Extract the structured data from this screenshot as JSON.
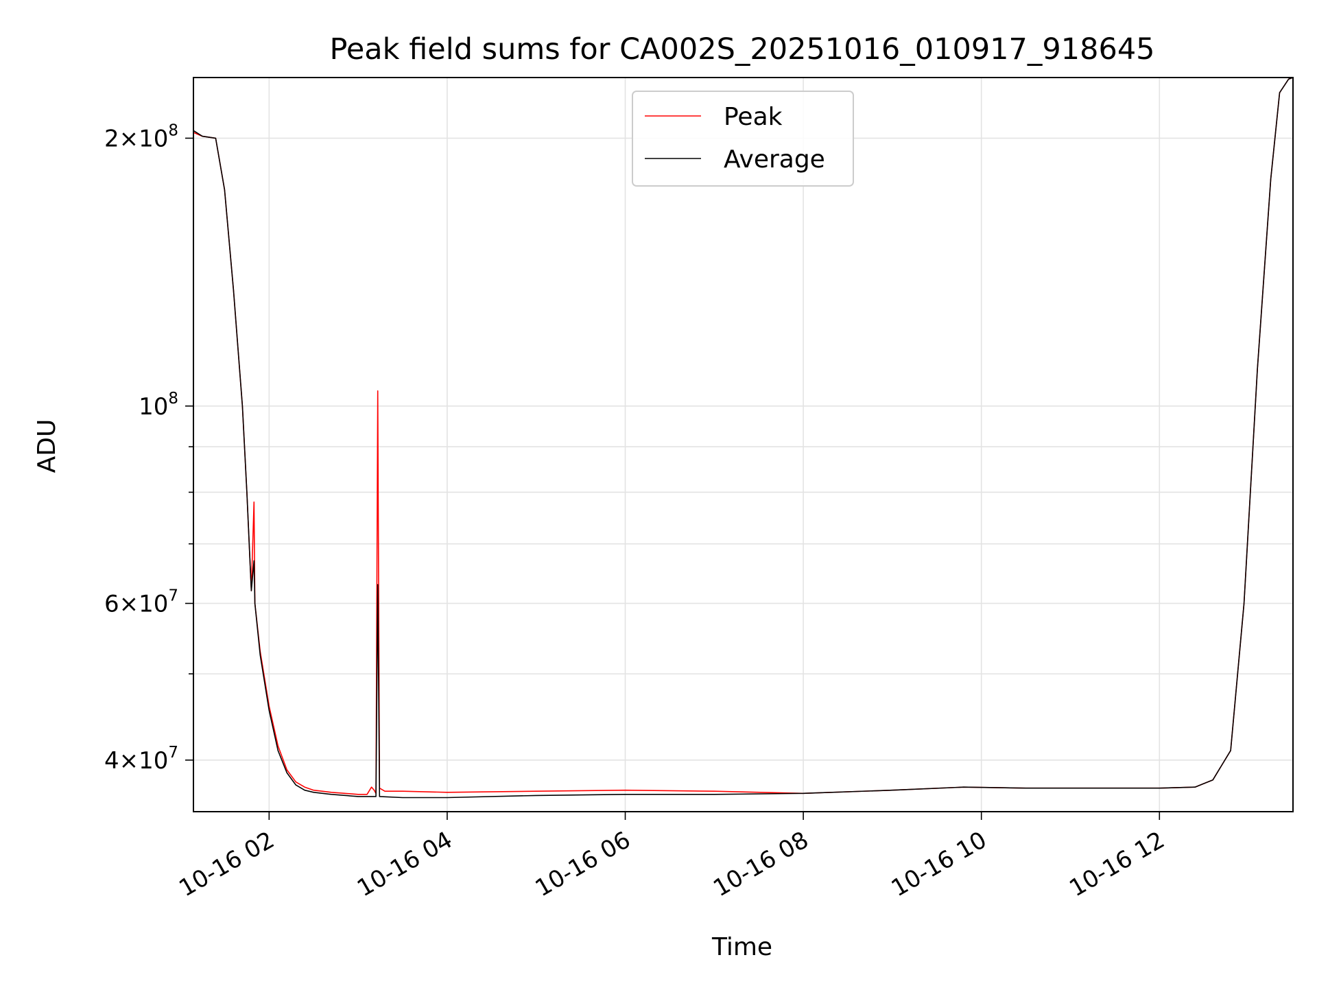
{
  "chart_data": {
    "type": "line",
    "title": "Peak field sums for CA002S_20251016_010917_918645",
    "xlabel": "Time",
    "ylabel": "ADU",
    "yscale": "log",
    "ylim": [
      35000000,
      234000000
    ],
    "xlim_hours": [
      1.15,
      13.5
    ],
    "grid": true,
    "legend_position": "upper center",
    "x_ticks": [
      {
        "hour": 2,
        "label": "10-16 02"
      },
      {
        "hour": 4,
        "label": "10-16 04"
      },
      {
        "hour": 6,
        "label": "10-16 06"
      },
      {
        "hour": 8,
        "label": "10-16 08"
      },
      {
        "hour": 10,
        "label": "10-16 10"
      },
      {
        "hour": 12,
        "label": "10-16 12"
      }
    ],
    "y_major_ticks": [
      {
        "value": 40000000,
        "mantissa": "4",
        "base": "10",
        "exponent": "7"
      },
      {
        "value": 60000000,
        "mantissa": "6",
        "base": "10",
        "exponent": "7"
      },
      {
        "value": 100000000,
        "mantissa": "",
        "base": "10",
        "exponent": "8"
      },
      {
        "value": 200000000,
        "mantissa": "2",
        "base": "10",
        "exponent": "8"
      }
    ],
    "y_minor_ticks": [
      50000000,
      70000000,
      80000000,
      90000000
    ],
    "series": [
      {
        "name": "Peak",
        "color": "#ff0000",
        "points": [
          [
            1.15,
            203000000
          ],
          [
            1.25,
            201000000
          ],
          [
            1.4,
            200000000
          ],
          [
            1.5,
            175000000
          ],
          [
            1.6,
            135000000
          ],
          [
            1.7,
            100000000
          ],
          [
            1.75,
            80000000
          ],
          [
            1.8,
            62000000
          ],
          [
            1.83,
            78000000
          ],
          [
            1.84,
            60000000
          ],
          [
            1.9,
            53000000
          ],
          [
            2.0,
            46000000
          ],
          [
            2.1,
            41500000
          ],
          [
            2.2,
            39000000
          ],
          [
            2.3,
            37800000
          ],
          [
            2.4,
            37300000
          ],
          [
            2.5,
            37000000
          ],
          [
            2.7,
            36800000
          ],
          [
            3.0,
            36600000
          ],
          [
            3.1,
            36600000
          ],
          [
            3.15,
            37300000
          ],
          [
            3.18,
            37000000
          ],
          [
            3.2,
            36700000
          ],
          [
            3.22,
            104000000
          ],
          [
            3.24,
            37200000
          ],
          [
            3.3,
            36900000
          ],
          [
            3.5,
            36900000
          ],
          [
            4.0,
            36800000
          ],
          [
            5.0,
            36900000
          ],
          [
            6.0,
            37000000
          ],
          [
            7.0,
            36900000
          ],
          [
            8.0,
            36700000
          ],
          [
            9.0,
            37000000
          ],
          [
            9.8,
            37300000
          ],
          [
            10.5,
            37200000
          ],
          [
            11.0,
            37200000
          ],
          [
            12.0,
            37200000
          ],
          [
            12.4,
            37300000
          ],
          [
            12.6,
            38000000
          ],
          [
            12.8,
            41000000
          ],
          [
            12.95,
            60000000
          ],
          [
            13.1,
            110000000
          ],
          [
            13.25,
            180000000
          ],
          [
            13.35,
            225000000
          ],
          [
            13.45,
            233000000
          ],
          [
            13.5,
            234000000
          ]
        ]
      },
      {
        "name": "Average",
        "color": "#000000",
        "points": [
          [
            1.15,
            204000000
          ],
          [
            1.25,
            201000000
          ],
          [
            1.4,
            200000000
          ],
          [
            1.5,
            175000000
          ],
          [
            1.6,
            135000000
          ],
          [
            1.7,
            100000000
          ],
          [
            1.75,
            80000000
          ],
          [
            1.8,
            62000000
          ],
          [
            1.83,
            67000000
          ],
          [
            1.84,
            60000000
          ],
          [
            1.9,
            52500000
          ],
          [
            2.0,
            45500000
          ],
          [
            2.1,
            41000000
          ],
          [
            2.2,
            38700000
          ],
          [
            2.3,
            37500000
          ],
          [
            2.4,
            37000000
          ],
          [
            2.5,
            36800000
          ],
          [
            2.7,
            36600000
          ],
          [
            3.0,
            36400000
          ],
          [
            3.2,
            36400000
          ],
          [
            3.22,
            63000000
          ],
          [
            3.24,
            36400000
          ],
          [
            3.5,
            36300000
          ],
          [
            4.0,
            36300000
          ],
          [
            5.0,
            36500000
          ],
          [
            6.0,
            36600000
          ],
          [
            7.0,
            36600000
          ],
          [
            8.0,
            36700000
          ],
          [
            9.0,
            37000000
          ],
          [
            9.8,
            37300000
          ],
          [
            10.5,
            37200000
          ],
          [
            11.0,
            37200000
          ],
          [
            12.0,
            37200000
          ],
          [
            12.4,
            37300000
          ],
          [
            12.6,
            38000000
          ],
          [
            12.8,
            41000000
          ],
          [
            12.95,
            60000000
          ],
          [
            13.1,
            110000000
          ],
          [
            13.25,
            180000000
          ],
          [
            13.35,
            225000000
          ],
          [
            13.45,
            233000000
          ],
          [
            13.5,
            234000000
          ]
        ]
      }
    ]
  }
}
